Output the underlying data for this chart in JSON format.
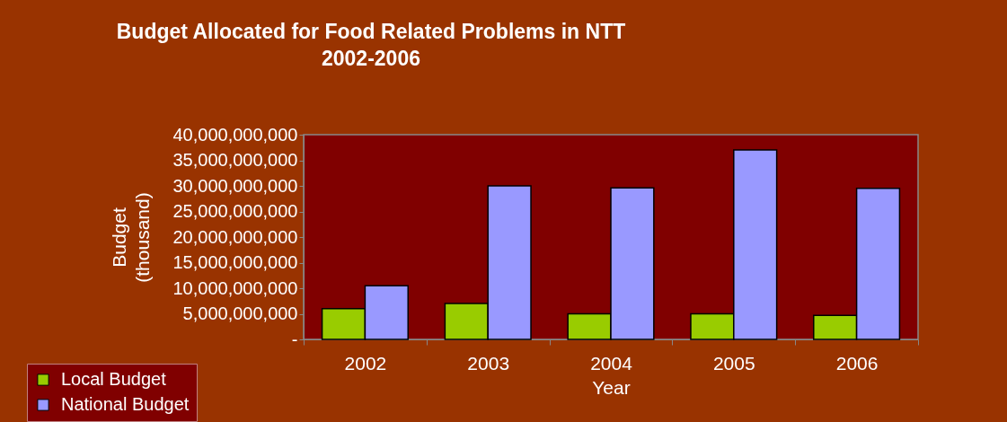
{
  "chart_data": {
    "type": "bar",
    "title": "Budget Allocated for Food Related Problems in NTT\n2002-2006",
    "xlabel": "Year",
    "ylabel": "Budget\n(thousand)",
    "categories": [
      "2002",
      "2003",
      "2004",
      "2005",
      "2006"
    ],
    "series": [
      {
        "name": "Local Budget",
        "color": "#99cc00",
        "values": [
          6000000000,
          7000000000,
          5000000000,
          5000000000,
          4700000000
        ]
      },
      {
        "name": "National Budget",
        "color": "#9999ff",
        "values": [
          10500000000,
          30000000000,
          29600000000,
          37000000000,
          29500000000
        ]
      }
    ],
    "ylim": [
      0,
      40000000000
    ],
    "yticks": [
      {
        "value": 0,
        "label": "-"
      },
      {
        "value": 5000000000,
        "label": "5,000,000,000"
      },
      {
        "value": 10000000000,
        "label": "10,000,000,000"
      },
      {
        "value": 15000000000,
        "label": "15,000,000,000"
      },
      {
        "value": 20000000000,
        "label": "20,000,000,000"
      },
      {
        "value": 25000000000,
        "label": "25,000,000,000"
      },
      {
        "value": 30000000000,
        "label": "30,000,000,000"
      },
      {
        "value": 35000000000,
        "label": "35,000,000,000"
      },
      {
        "value": 40000000000,
        "label": "40,000,000,000"
      }
    ],
    "grid": false,
    "legend": "bottom left"
  }
}
